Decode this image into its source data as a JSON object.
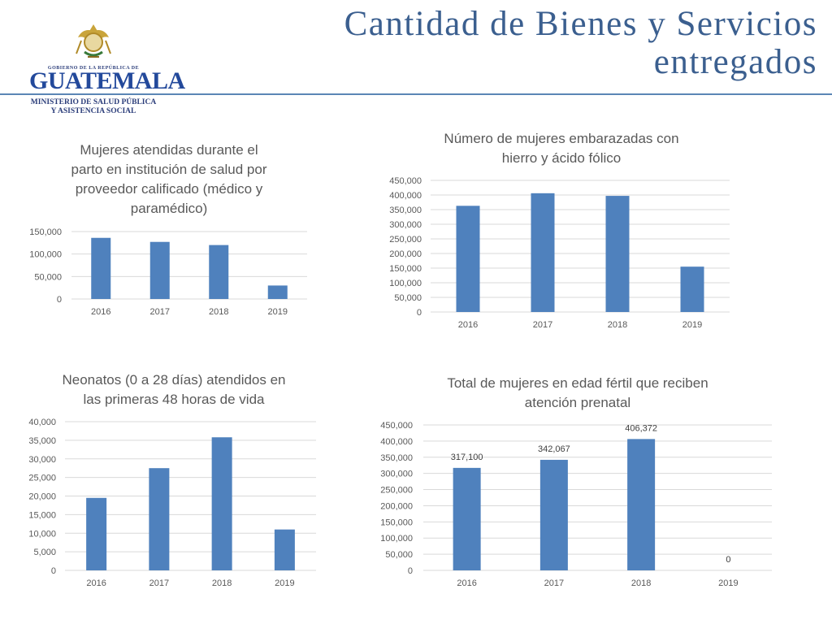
{
  "header": {
    "title_line1": "Cantidad de Bienes y Servicios",
    "title_line2": "entregados"
  },
  "logo": {
    "gov_text": "GOBIERNO DE LA REPÚBLICA DE",
    "country": "GUATEMALA",
    "ministry_line1": "MINISTERIO DE SALUD PÚBLICA",
    "ministry_line2": "Y ASISTENCIA SOCIAL"
  },
  "colors": {
    "bar": "#4f81bd",
    "grid": "#d9d9d9",
    "text": "#595959",
    "title": "#3b5f8f"
  },
  "chart_data": [
    {
      "type": "bar",
      "title_lines": [
        "Mujeres atendidas durante el",
        "parto en institución de salud por",
        "proveedor calificado (médico y",
        "paramédico)"
      ],
      "categories": [
        "2016",
        "2017",
        "2018",
        "2019"
      ],
      "values": [
        136000,
        127000,
        120000,
        30000
      ],
      "ylim": [
        0,
        150000
      ],
      "yticks": [
        0,
        50000,
        100000,
        150000
      ],
      "ytick_labels": [
        "0",
        "50,000",
        "100,000",
        "150,000"
      ],
      "data_labels": [],
      "grid": true
    },
    {
      "type": "bar",
      "title_lines": [
        "Número de mujeres embarazadas con",
        "hierro y ácido fólico"
      ],
      "categories": [
        "2016",
        "2017",
        "2018",
        "2019"
      ],
      "values": [
        363000,
        406000,
        397000,
        155000
      ],
      "ylim": [
        0,
        450000
      ],
      "yticks": [
        0,
        50000,
        100000,
        150000,
        200000,
        250000,
        300000,
        350000,
        400000,
        450000
      ],
      "ytick_labels": [
        "0",
        "50,000",
        "100,000",
        "150,000",
        "200,000",
        "250,000",
        "300,000",
        "350,000",
        "400,000",
        "450,000"
      ],
      "data_labels": [],
      "grid": true
    },
    {
      "type": "bar",
      "title_lines": [
        "Neonatos (0 a 28 días) atendidos en",
        "las primeras 48 horas de vida"
      ],
      "categories": [
        "2016",
        "2017",
        "2018",
        "2019"
      ],
      "values": [
        19500,
        27500,
        35800,
        11000
      ],
      "ylim": [
        0,
        40000
      ],
      "yticks": [
        0,
        5000,
        10000,
        15000,
        20000,
        25000,
        30000,
        35000,
        40000
      ],
      "ytick_labels": [
        "0",
        "5,000",
        "10,000",
        "15,000",
        "20,000",
        "25,000",
        "30,000",
        "35,000",
        "40,000"
      ],
      "data_labels": [],
      "grid": true
    },
    {
      "type": "bar",
      "title_lines": [
        "Total  de mujeres en edad fértil que reciben",
        "atención prenatal"
      ],
      "categories": [
        "2016",
        "2017",
        "2018",
        "2019"
      ],
      "values": [
        317100,
        342067,
        406372,
        0
      ],
      "ylim": [
        0,
        450000
      ],
      "yticks": [
        0,
        50000,
        100000,
        150000,
        200000,
        250000,
        300000,
        350000,
        400000,
        450000
      ],
      "ytick_labels": [
        "0",
        "50,000",
        "100,000",
        "150,000",
        "200,000",
        "250,000",
        "300,000",
        "350,000",
        "400,000",
        "450,000"
      ],
      "data_labels": [
        "317,100",
        "342,067",
        "406,372",
        "0"
      ],
      "grid": true
    }
  ]
}
